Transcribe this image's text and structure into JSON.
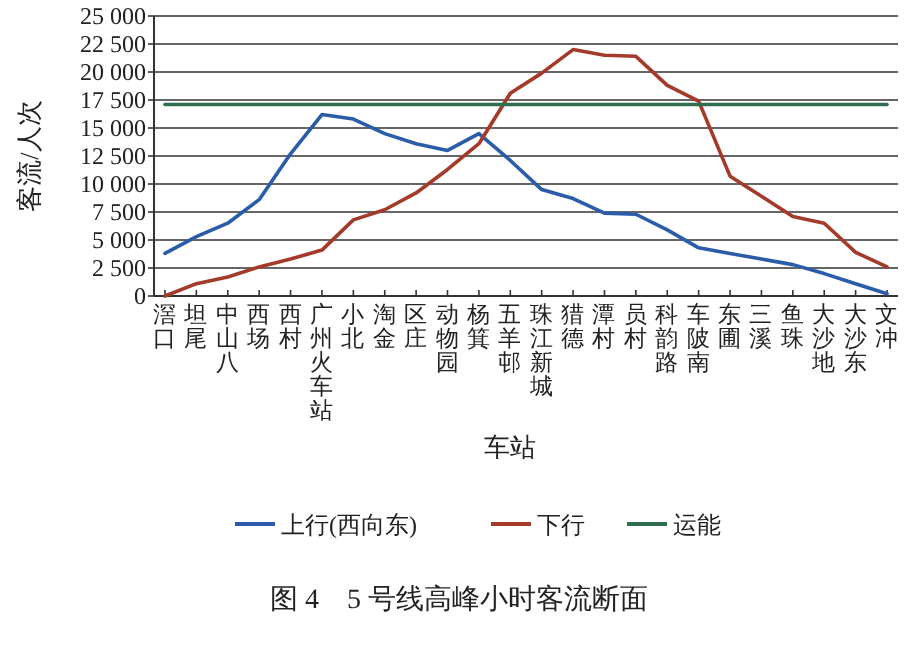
{
  "chart_data": {
    "type": "line",
    "title": "图 4　5 号线高峰小时客流断面",
    "xlabel": "车站",
    "ylabel": "客流/人次",
    "categories": [
      "滘口",
      "坦尾",
      "中山八",
      "西场",
      "西村",
      "广州火车站",
      "小北",
      "淘金",
      "区庄",
      "动物园",
      "杨箕",
      "五羊邨",
      "珠江新城",
      "猎德",
      "潭村",
      "员村",
      "科韵路",
      "车陂南",
      "东圃",
      "三溪",
      "鱼珠",
      "大沙地",
      "大沙东",
      "文冲"
    ],
    "series": [
      {
        "name": "上行(西向东)",
        "color": "#2a5caa",
        "values": [
          3800,
          5300,
          6500,
          8600,
          12700,
          16200,
          15800,
          14500,
          13600,
          13000,
          14500,
          12100,
          9500,
          8700,
          7400,
          7300,
          5900,
          4300,
          3800,
          3300,
          2800,
          2000,
          1100,
          200
        ]
      },
      {
        "name": "下行",
        "color": "#a33a2a",
        "values": [
          0,
          1100,
          1700,
          2600,
          3300,
          4100,
          6800,
          7700,
          9200,
          11300,
          13600,
          18100,
          19900,
          22000,
          21500,
          21400,
          18800,
          17400,
          10700,
          8900,
          7100,
          6500,
          3900,
          2600
        ]
      },
      {
        "name": "运能",
        "color": "#2e6e4e",
        "values": [
          17100,
          17100,
          17100,
          17100,
          17100,
          17100,
          17100,
          17100,
          17100,
          17100,
          17100,
          17100,
          17100,
          17100,
          17100,
          17100,
          17100,
          17100,
          17100,
          17100,
          17100,
          17100,
          17100,
          17100
        ]
      }
    ],
    "ylim": [
      0,
      25000
    ],
    "yticks": [
      0,
      {
        "value": 2500,
        "label": "2 500"
      },
      {
        "value": 5000,
        "label": "5 000"
      },
      {
        "value": 7500,
        "label": "7 500"
      },
      {
        "value": 10000,
        "label": "10 000"
      },
      {
        "value": 12500,
        "label": "12 500"
      },
      {
        "value": 15000,
        "label": "15 000"
      },
      {
        "value": 17500,
        "label": "17 500"
      },
      {
        "value": 20000,
        "label": "20 000"
      },
      {
        "value": 22500,
        "label": "22 500"
      },
      {
        "value": 25000,
        "label": "25 000"
      }
    ],
    "grid": "y",
    "legend": "bottom",
    "marker": "none",
    "line_style": "solid"
  }
}
